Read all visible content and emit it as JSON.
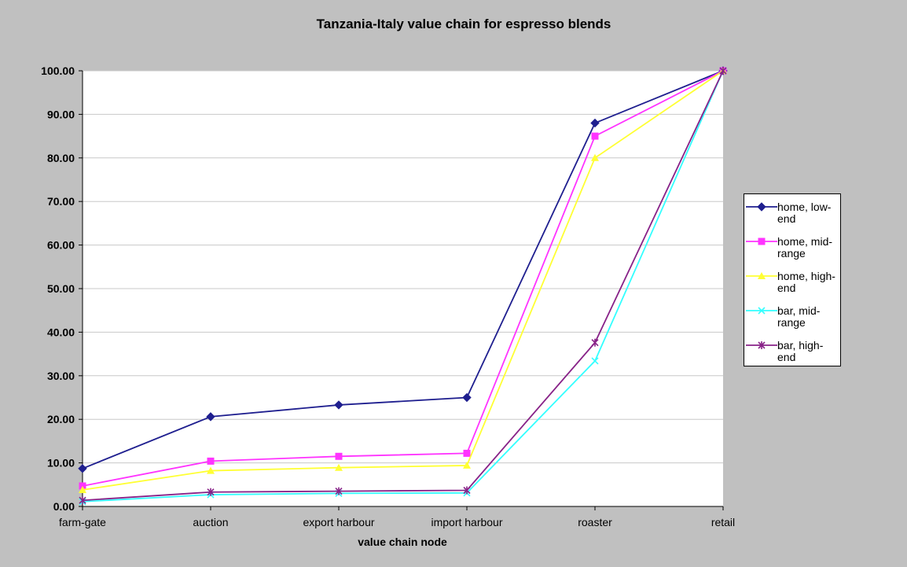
{
  "chart_data": {
    "type": "line",
    "title": "Tanzania-Italy value chain for espresso blends",
    "xlabel": "value chain node",
    "ylabel": "",
    "categories": [
      "farm-gate",
      "auction",
      "export harbour",
      "import harbour",
      "roaster",
      "retail"
    ],
    "ylim": [
      0,
      100
    ],
    "yticks": [
      "0.00",
      "10.00",
      "20.00",
      "30.00",
      "40.00",
      "50.00",
      "60.00",
      "70.00",
      "80.00",
      "90.00",
      "100.00"
    ],
    "grid": "horizontal",
    "legend_position": "right",
    "series": [
      {
        "name": "home, low-end",
        "color": "#1f1f8f",
        "marker": "diamond",
        "values": [
          8.7,
          20.6,
          23.3,
          25.0,
          88.0,
          100.0
        ]
      },
      {
        "name": "home, mid-range",
        "color": "#ff33ff",
        "marker": "square",
        "values": [
          4.7,
          10.4,
          11.5,
          12.2,
          85.0,
          100.0
        ]
      },
      {
        "name": "home, high-end",
        "color": "#ffff33",
        "marker": "triangle",
        "values": [
          3.8,
          8.2,
          8.9,
          9.4,
          80.0,
          100.0
        ]
      },
      {
        "name": "bar, mid-range",
        "color": "#33ffff",
        "marker": "x",
        "values": [
          1.1,
          2.7,
          3.0,
          3.1,
          33.4,
          100.0
        ]
      },
      {
        "name": "bar, high-end",
        "color": "#882288",
        "marker": "star",
        "values": [
          1.4,
          3.3,
          3.5,
          3.7,
          37.6,
          100.0
        ]
      }
    ]
  }
}
